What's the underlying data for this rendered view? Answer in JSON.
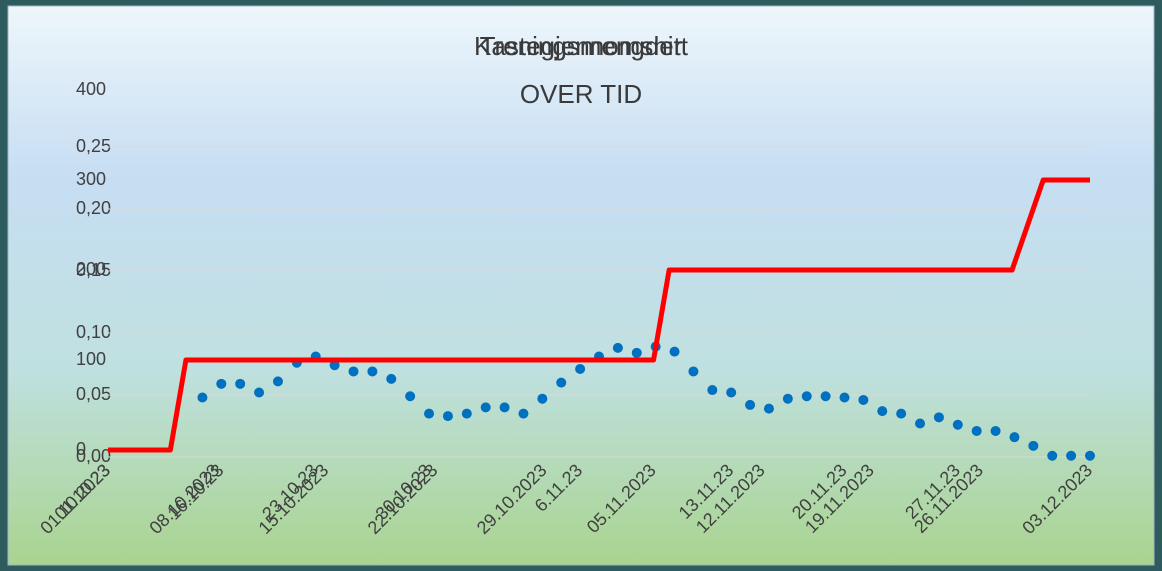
{
  "chart_data": [
    {
      "type": "line",
      "title": "Treningsmengder",
      "subtitle": "OVER TID",
      "x": [
        "01.10.2023",
        "05.10.2023",
        "06.10.2023",
        "05.11.2023",
        "06.11.2023",
        "28.11.2023",
        "30.11.2023",
        "03.12.2023"
      ],
      "values": [
        0,
        0,
        100,
        100,
        200,
        200,
        300,
        300
      ],
      "color": "#ff0000",
      "xlim": [
        "01.10.2023",
        "03.12.2023"
      ],
      "xticks": [
        "01.10.2023",
        "08.10.2023",
        "15.10.2023",
        "22.10.2023",
        "29.10.2023",
        "05.11.2023",
        "12.11.2023",
        "19.11.2023",
        "26.11.2023",
        "03.12.2023"
      ],
      "ylim": [
        0,
        400
      ],
      "yticks": [
        0,
        100,
        200,
        300,
        400
      ],
      "grid": false
    },
    {
      "type": "scatter",
      "title": "Kastegjennomsnitt",
      "categories": [
        "01.10.23",
        null,
        null,
        null,
        null,
        null,
        "16.10.23",
        null,
        null,
        null,
        null,
        "23.10.23",
        null,
        null,
        null,
        null,
        null,
        "30.10.23",
        null,
        null,
        null,
        null,
        null,
        null,
        null,
        "6.11.23",
        null,
        null,
        null,
        null,
        null,
        null,
        null,
        "13.11.23",
        null,
        null,
        null,
        null,
        null,
        "20.11.23",
        null,
        null,
        null,
        null,
        null,
        "27.11.23",
        null,
        null,
        null,
        null,
        null,
        null,
        null
      ],
      "values": [
        null,
        null,
        null,
        null,
        null,
        0.048,
        0.059,
        0.059,
        0.052,
        0.061,
        0.076,
        0.081,
        0.074,
        0.069,
        0.069,
        0.063,
        0.049,
        0.035,
        0.033,
        0.035,
        0.04,
        0.04,
        0.035,
        0.047,
        0.06,
        0.071,
        0.081,
        0.088,
        0.084,
        0.089,
        0.085,
        0.069,
        0.054,
        0.052,
        0.042,
        0.039,
        0.047,
        0.049,
        0.049,
        0.048,
        0.046,
        0.037,
        0.035,
        0.027,
        0.032,
        0.026,
        0.021,
        0.021,
        0.016,
        0.009,
        0.001,
        0.001,
        0.001
      ],
      "color": "#0070c0",
      "ylim": [
        0,
        0.25
      ],
      "yticks": [
        {
          "value": 0,
          "label": "0,00"
        },
        {
          "value": 0.05,
          "label": "0,05"
        },
        {
          "value": 0.1,
          "label": "0,10"
        },
        {
          "value": 0.15,
          "label": "0,15"
        },
        {
          "value": 0.2,
          "label": "0,20"
        },
        {
          "value": 0.25,
          "label": "0,25"
        }
      ],
      "grid": true
    }
  ]
}
